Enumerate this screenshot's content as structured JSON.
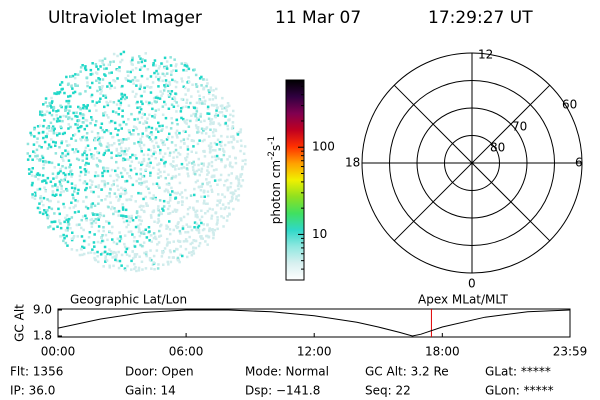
{
  "header": {
    "title": "Ultraviolet Imager",
    "date": "11 Mar 07",
    "time": "17:29:27 UT"
  },
  "colorbar": {
    "label": [
      "photon cm",
      "-2",
      "s",
      "-1"
    ],
    "scale": "log",
    "range": [
      3,
      590
    ],
    "ticks": [
      10,
      100
    ],
    "colors": [
      "#ffffff",
      "#d8f0f0",
      "#90e8e0",
      "#30d8c8",
      "#40e060",
      "#90e020",
      "#f0f000",
      "#ffa000",
      "#ff3000",
      "#c00020",
      "#800050",
      "#300040",
      "#000000"
    ]
  },
  "polar": {
    "mlt_labels": [
      "12",
      "18",
      "6",
      "0"
    ],
    "lat_labels": [
      "60",
      "70",
      "80"
    ],
    "lat_circles": [
      50,
      60,
      70,
      80
    ]
  },
  "altitude": {
    "y_label": "GC Alt",
    "left_label": "Geographic Lat/Lon",
    "right_label": "Apex MLat/MLT",
    "ylim": [
      1.8,
      9.0
    ],
    "yticks": [
      {
        "value": 9.0,
        "label": "9.0"
      },
      1.8
    ],
    "xlim": [
      0,
      23.98
    ],
    "xticks": [
      {
        "value": 0,
        "label": "00:00"
      },
      {
        "value": 6,
        "label": "06:00"
      },
      {
        "value": 12,
        "label": "12:00"
      },
      {
        "value": 18,
        "label": "18:00"
      },
      {
        "value": 23.98,
        "label": "23:59"
      }
    ],
    "x": [
      0,
      2,
      4,
      6,
      8,
      10,
      12,
      14,
      15,
      16,
      16.6,
      17,
      18,
      20,
      22,
      23.98
    ],
    "values": [
      4.0,
      6.5,
      8.3,
      9.0,
      9.0,
      8.5,
      7.4,
      5.6,
      4.3,
      2.8,
      1.8,
      2.3,
      4.3,
      7.0,
      8.5,
      9.0
    ],
    "current_time": 17.49
  },
  "info": {
    "rows": [
      [
        "Flt: 1356",
        "Door: Open",
        "Mode: Normal",
        "GC Alt: 3.2 Re",
        "GLat: *****"
      ],
      [
        "IP: 36.0",
        "Gain: 14",
        "Dsp: −141.8",
        "Seq: 22",
        "GLon: *****"
      ]
    ]
  }
}
